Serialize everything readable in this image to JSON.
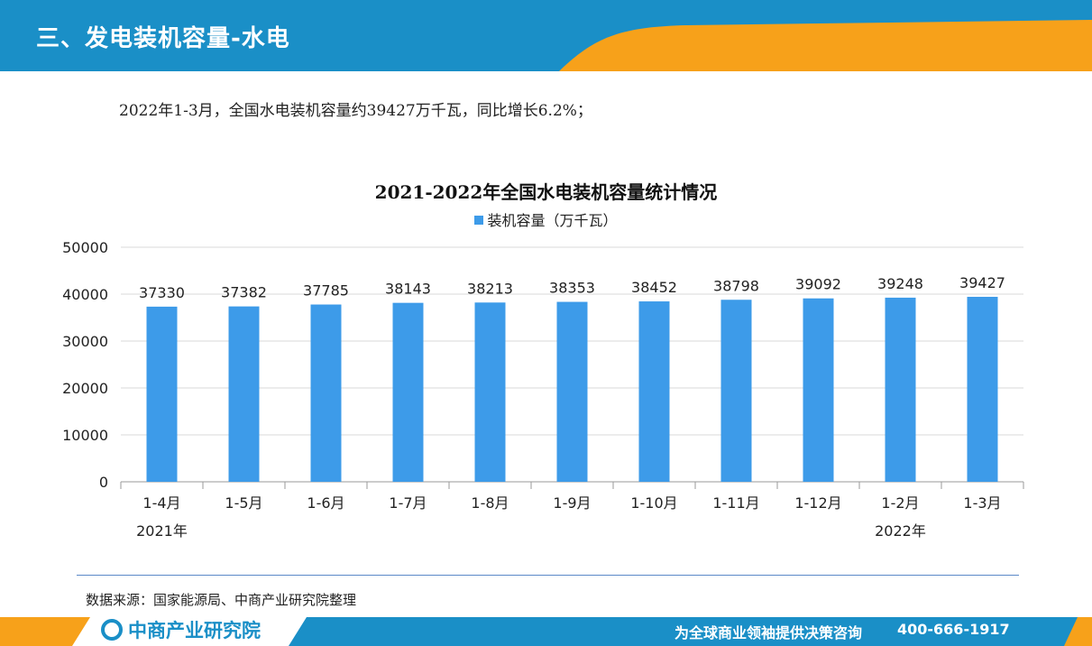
{
  "header": {
    "title": "三、发电装机容量-水电"
  },
  "intro": {
    "text": "2022年1-3月，全国水电装机容量约39427万千瓦，同比增长6.2%；"
  },
  "source": {
    "text": "数据来源：国家能源局、中商产业研究院整理"
  },
  "footer": {
    "logo_text": "中商产业研究院",
    "slogan": "为全球商业领袖提供决策咨询",
    "phone": "400-666-1917"
  },
  "colors": {
    "header_blue": "#1a8fc7",
    "accent_orange": "#f7a11a",
    "bar": "#3d9be9"
  },
  "chart_data": {
    "type": "bar",
    "title": "2021-2022年全国水电装机容量统计情况",
    "categories": [
      "1-4月",
      "1-5月",
      "1-6月",
      "1-7月",
      "1-8月",
      "1-9月",
      "1-10月",
      "1-11月",
      "1-12月",
      "1-2月",
      "1-3月"
    ],
    "year_groups": [
      {
        "label": "2021年",
        "under": "1-4月"
      },
      {
        "label": "2022年",
        "under": "1-2月"
      }
    ],
    "series": [
      {
        "name": "装机容量（万千瓦）",
        "values": [
          37330,
          37382,
          37785,
          38143,
          38213,
          38353,
          38452,
          38798,
          39092,
          39248,
          39427
        ]
      }
    ],
    "ylim": [
      0,
      50000
    ],
    "yticks": [
      0,
      10000,
      20000,
      30000,
      40000,
      50000
    ],
    "grid": true,
    "legend": "top-center",
    "data_labels": true
  }
}
